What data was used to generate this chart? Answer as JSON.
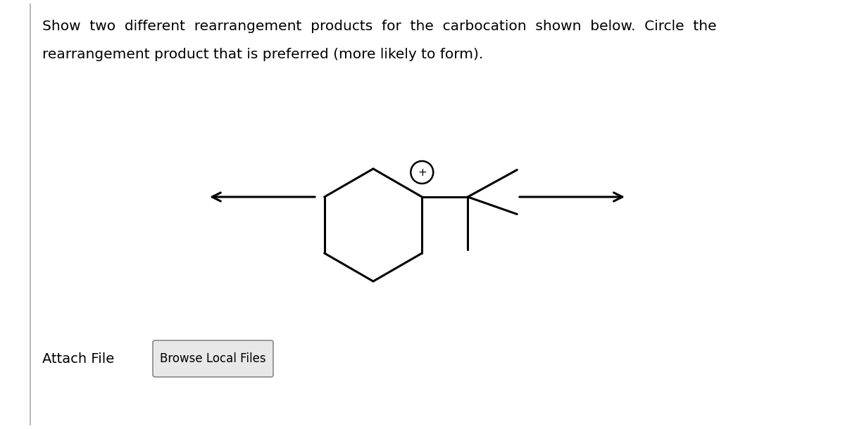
{
  "title_line1": "Show  two  different  rearrangement  products  for  the  carbocation  shown  below.  Circle  the",
  "title_line2": "rearrangement product that is preferred (more likely to form).",
  "attach_file_text": "Attach File",
  "browse_button_text": "Browse Local Files",
  "bg_color": "#ffffff",
  "text_color": "#000000",
  "line_color": "#000000",
  "font_size_main": 14.5,
  "font_size_button": 12,
  "font_size_attach": 14,
  "font_size_plus": 11,
  "line_width": 2.2
}
